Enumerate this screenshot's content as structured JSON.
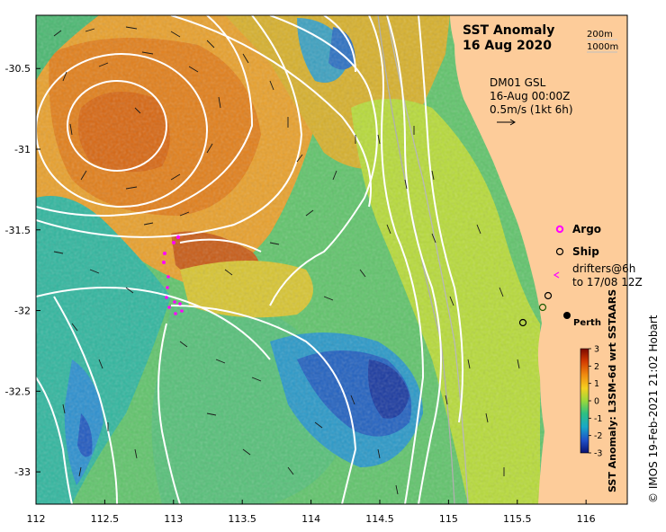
{
  "map": {
    "title": "SST Anomaly",
    "date": "16 Aug 2020",
    "depth_labels": [
      "200m",
      "1000m"
    ],
    "model_label": "DM01 GSL",
    "model_time": "16-Aug 00:00Z",
    "scale_label": "0.5m/s (1kt 6h)",
    "legend": {
      "argo": "Argo",
      "ship": "Ship",
      "drifters_line1": "drifters@6h",
      "drifters_line2": "to 17/08 12Z"
    },
    "city": "Perth",
    "x_ticks": [
      "112",
      "112.5",
      "113",
      "113.5",
      "114",
      "114.5",
      "115",
      "115.5",
      "116"
    ],
    "y_ticks": [
      "-30.5",
      "-31",
      "-31.5",
      "-32",
      "-32.5",
      "-33"
    ],
    "colorbar": {
      "label": "SST Anomaly: L3SM-6d wrt SSTAARS",
      "ticks": [
        "3",
        "2",
        "1",
        "0",
        "-1",
        "-2",
        "-3"
      ],
      "range": [
        -3,
        3
      ]
    },
    "credit": "© IMOS 19-Feb-2021 21:02 Hobart",
    "colors": {
      "land": "#fdcc9a",
      "warm": "#e07810",
      "neutral": "#bfe030",
      "cool": "#2fb89a",
      "cold": "#1c3fb0",
      "argo": "#ff00ff"
    }
  }
}
